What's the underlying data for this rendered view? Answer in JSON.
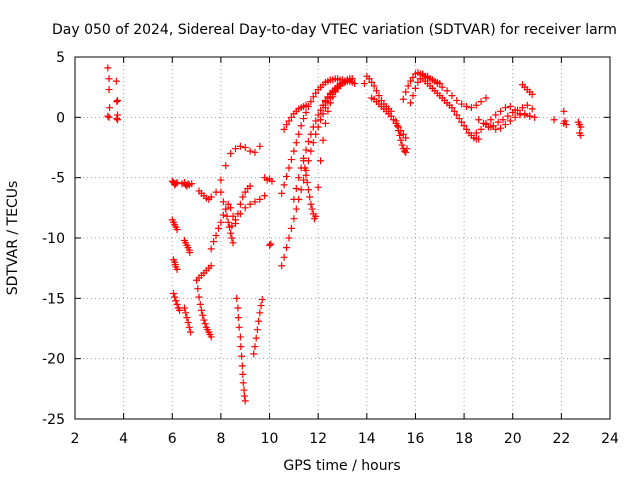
{
  "chart_data": {
    "type": "scatter",
    "title": "Day 050 of 2024, Sidereal Day-to-day VTEC variation (SDTVAR) for receiver larm",
    "xlabel": "GPS time / hours",
    "ylabel": "SDTVAR / TECUs",
    "xlim": [
      2,
      24
    ],
    "ylim": [
      -25,
      5
    ],
    "xticks": [
      2,
      4,
      6,
      8,
      10,
      12,
      14,
      16,
      18,
      20,
      22,
      24
    ],
    "yticks": [
      -25,
      -20,
      -15,
      -10,
      -5,
      0,
      5
    ],
    "grid": true,
    "legend": "none",
    "marker": "+",
    "color": "#ff0000",
    "series": [
      {
        "x": [
          3.35,
          3.4,
          3.4,
          3.42,
          3.35,
          3.4,
          3.7,
          3.75,
          3.72,
          3.75,
          3.72,
          3.75
        ],
        "y": [
          4.1,
          3.2,
          2.3,
          0.8,
          0.1,
          0.0,
          3.0,
          1.4,
          1.3,
          0.2,
          -0.1,
          -0.2
        ]
      },
      {
        "x": [
          6.0,
          6.05,
          6.1,
          6.1,
          6.15,
          6.2,
          6.4,
          6.5,
          6.55,
          6.6,
          6.65,
          6.7,
          6.8
        ],
        "y": [
          -5.3,
          -5.4,
          -5.5,
          -5.6,
          -5.5,
          -5.4,
          -5.5,
          -5.4,
          -5.6,
          -5.7,
          -5.5,
          -5.6,
          -5.5
        ]
      },
      {
        "x": [
          6.0,
          6.05,
          6.1,
          6.15,
          6.2
        ],
        "y": [
          -8.5,
          -8.7,
          -8.9,
          -9.1,
          -9.3
        ]
      },
      {
        "x": [
          6.05,
          6.1,
          6.12,
          6.15,
          6.2
        ],
        "y": [
          -11.8,
          -12.0,
          -12.2,
          -12.4,
          -12.6
        ]
      },
      {
        "x": [
          6.5,
          6.55,
          6.6,
          6.65,
          6.7,
          6.72
        ],
        "y": [
          -10.2,
          -10.4,
          -10.6,
          -10.8,
          -11.0,
          -11.2
        ]
      },
      {
        "x": [
          6.05,
          6.1,
          6.15,
          6.2,
          6.25,
          6.3
        ],
        "y": [
          -14.6,
          -14.9,
          -15.2,
          -15.5,
          -15.8,
          -16.0
        ]
      },
      {
        "x": [
          6.5,
          6.55,
          6.6,
          6.65,
          6.7,
          6.75
        ],
        "y": [
          -15.8,
          -16.2,
          -16.6,
          -17.0,
          -17.4,
          -17.8
        ]
      },
      {
        "x": [
          7.0,
          7.05,
          7.1,
          7.15,
          7.2,
          7.25,
          7.3,
          7.35,
          7.4,
          7.45,
          7.5,
          7.55,
          7.6
        ],
        "y": [
          -13.5,
          -14.2,
          -14.9,
          -15.5,
          -16.0,
          -16.4,
          -16.8,
          -17.1,
          -17.4,
          -17.6,
          -17.8,
          -18.0,
          -18.2
        ]
      },
      {
        "x": [
          7.1,
          7.2,
          7.3,
          7.4,
          7.5,
          7.6
        ],
        "y": [
          -13.3,
          -13.1,
          -12.9,
          -12.7,
          -12.5,
          -12.3
        ]
      },
      {
        "x": [
          7.1,
          7.2,
          7.3,
          7.4,
          7.5,
          7.6,
          7.8,
          8.0,
          8.2,
          8.4,
          8.6,
          8.8,
          9.0,
          9.2,
          9.4,
          9.6
        ],
        "y": [
          -6.1,
          -6.3,
          -6.5,
          -6.7,
          -6.8,
          -6.6,
          -6.2,
          -5.2,
          -4.0,
          -3.0,
          -2.6,
          -2.4,
          -2.5,
          -2.8,
          -2.9,
          -2.4
        ]
      },
      {
        "x": [
          7.6,
          7.7,
          7.8,
          7.9,
          8.0,
          8.1,
          8.2,
          8.3,
          8.4,
          8.5
        ],
        "y": [
          -10.9,
          -10.3,
          -9.8,
          -9.2,
          -8.7,
          -8.1,
          -7.6,
          -7.2,
          -7.5,
          -8.2
        ]
      },
      {
        "x": [
          8.0,
          8.1,
          8.2,
          8.25,
          8.3,
          8.35,
          8.4,
          8.45,
          8.5
        ],
        "y": [
          -6.2,
          -7.0,
          -7.6,
          -8.2,
          -8.7,
          -9.1,
          -9.6,
          -10.0,
          -10.4
        ]
      },
      {
        "x": [
          8.45,
          8.6,
          8.8,
          9.0,
          9.2,
          9.4,
          9.6,
          9.8
        ],
        "y": [
          -9.0,
          -8.5,
          -8.0,
          -7.5,
          -7.2,
          -7.0,
          -6.8,
          -6.5
        ]
      },
      {
        "x": [
          8.6,
          8.7,
          8.8,
          8.9,
          9.0,
          9.1,
          9.2
        ],
        "y": [
          -8.8,
          -8.0,
          -7.2,
          -6.6,
          -6.2,
          -5.9,
          -5.7
        ]
      },
      {
        "x": [
          8.65,
          8.7,
          8.72,
          8.75,
          8.8,
          8.82,
          8.85,
          8.88,
          8.9,
          8.92,
          8.95,
          8.97,
          9.0
        ],
        "y": [
          -15.0,
          -15.8,
          -16.6,
          -17.4,
          -18.2,
          -19.0,
          -19.8,
          -20.6,
          -21.3,
          -22.0,
          -22.6,
          -23.1,
          -23.5
        ]
      },
      {
        "x": [
          9.35,
          9.4,
          9.45,
          9.5,
          9.55,
          9.6,
          9.65,
          9.7
        ],
        "y": [
          -19.6,
          -19.0,
          -18.3,
          -17.6,
          -16.9,
          -16.2,
          -15.6,
          -15.1
        ]
      },
      {
        "x": [
          9.8,
          9.9,
          10.0,
          10.1,
          10.05,
          10.0
        ],
        "y": [
          -5.0,
          -5.2,
          -5.1,
          -5.3,
          -10.5,
          -10.6
        ]
      },
      {
        "x": [
          10.5,
          10.6,
          10.7,
          10.8,
          10.9,
          11.0,
          11.1,
          11.2,
          11.3,
          11.4,
          11.5,
          11.6,
          11.7,
          11.8,
          11.9,
          12.0,
          12.1,
          12.2,
          12.3,
          12.4,
          12.5,
          12.6,
          12.7,
          12.8,
          12.9,
          13.0,
          13.1,
          13.2,
          13.3
        ],
        "y": [
          -12.3,
          -11.6,
          -10.8,
          -10.0,
          -9.2,
          -8.4,
          -7.6,
          -6.8,
          -6.0,
          -5.2,
          -4.4,
          -3.6,
          -2.8,
          -2.1,
          -1.4,
          -0.8,
          -0.2,
          0.3,
          0.8,
          1.2,
          1.6,
          1.9,
          2.2,
          2.4,
          2.6,
          2.8,
          2.9,
          3.0,
          3.0
        ]
      },
      {
        "x": [
          10.5,
          10.6,
          10.7,
          10.8,
          10.9,
          11.0,
          11.1,
          11.2,
          11.3,
          11.4,
          11.5,
          11.6,
          11.7,
          11.8,
          11.9,
          12.0,
          12.1,
          12.2,
          12.3,
          12.4,
          12.5,
          12.6,
          12.7,
          12.8,
          12.9,
          13.0,
          13.1
        ],
        "y": [
          -6.3,
          -5.6,
          -4.9,
          -4.2,
          -3.5,
          -2.8,
          -2.1,
          -1.4,
          -0.7,
          -0.1,
          0.4,
          0.9,
          1.3,
          1.7,
          2.0,
          2.3,
          2.5,
          2.7,
          2.9,
          3.0,
          3.1,
          3.1,
          3.2,
          3.2,
          3.1,
          3.1,
          3.0
        ]
      },
      {
        "x": [
          10.6,
          10.7,
          10.8,
          10.9,
          11.0,
          11.1,
          11.2,
          11.3,
          11.4,
          11.5
        ],
        "y": [
          -1.0,
          -0.6,
          -0.3,
          0.0,
          0.3,
          0.5,
          0.7,
          0.8,
          0.9,
          1.0
        ]
      },
      {
        "x": [
          11.0,
          11.1,
          11.2,
          11.3,
          11.4,
          11.5,
          11.6,
          11.7,
          11.8,
          11.9,
          12.0,
          12.1,
          12.2,
          12.3,
          12.4,
          12.5,
          12.6,
          12.7,
          12.8,
          12.9,
          13.0,
          13.1,
          13.2,
          13.3,
          13.4
        ],
        "y": [
          -6.8,
          -5.9,
          -5.0,
          -4.2,
          -3.4,
          -2.7,
          -2.0,
          -1.4,
          -0.8,
          -0.3,
          0.2,
          0.6,
          1.0,
          1.4,
          1.7,
          2.0,
          2.2,
          2.4,
          2.6,
          2.8,
          2.9,
          3.0,
          3.1,
          3.2,
          3.2
        ]
      },
      {
        "x": [
          11.4,
          11.45,
          11.5,
          11.55,
          11.6,
          11.65,
          11.7,
          11.75,
          11.8,
          11.85,
          11.9,
          12.0,
          12.1,
          12.2,
          12.3,
          12.4,
          12.5,
          12.6,
          12.7,
          12.8,
          12.9,
          13.0,
          13.1,
          13.2,
          13.3,
          13.4,
          13.5
        ],
        "y": [
          -3.6,
          -4.2,
          -4.8,
          -5.4,
          -6.0,
          -6.6,
          -7.2,
          -7.6,
          -8.0,
          -8.4,
          -8.2,
          -5.8,
          -3.6,
          -1.9,
          -0.5,
          0.5,
          1.2,
          1.7,
          2.1,
          2.4,
          2.6,
          2.8,
          2.9,
          3.0,
          3.0,
          2.9,
          2.8
        ]
      },
      {
        "x": [
          12.2,
          12.3,
          12.4,
          12.5,
          12.6,
          12.7,
          12.8,
          12.9,
          13.0,
          13.1,
          13.2,
          13.3,
          13.4
        ],
        "y": [
          1.0,
          1.3,
          1.6,
          1.9,
          2.1,
          2.3,
          2.5,
          2.7,
          2.9,
          3.0,
          3.1,
          3.1,
          3.2
        ]
      },
      {
        "x": [
          13.9,
          14.0,
          14.1,
          14.2,
          14.3,
          14.4,
          14.5,
          14.6,
          14.7,
          14.8,
          14.9,
          15.0
        ],
        "y": [
          2.8,
          3.4,
          3.2,
          2.9,
          2.6,
          2.2,
          1.8,
          1.4,
          1.1,
          0.9,
          0.7,
          0.5
        ]
      },
      {
        "x": [
          14.2,
          14.3,
          14.4,
          14.5,
          14.6,
          14.7,
          14.8,
          14.9,
          15.0,
          15.1,
          15.2,
          15.3,
          15.4,
          15.5,
          15.6
        ],
        "y": [
          1.6,
          1.5,
          1.3,
          1.1,
          0.9,
          0.7,
          0.5,
          0.3,
          0.1,
          -0.2,
          -0.5,
          -0.8,
          -1.1,
          -1.4,
          -1.7
        ]
      },
      {
        "x": [
          15.2,
          15.25,
          15.3,
          15.35,
          15.4,
          15.45,
          15.5,
          15.55,
          15.6,
          15.65
        ],
        "y": [
          -0.3,
          -0.7,
          -1.1,
          -1.5,
          -1.9,
          -2.3,
          -2.6,
          -2.8,
          -2.9,
          -2.6
        ]
      },
      {
        "x": [
          15.5,
          15.6,
          15.7,
          15.8,
          15.9,
          16.0,
          16.1,
          16.2,
          16.3,
          16.4,
          16.5,
          16.6,
          16.7,
          16.8,
          16.9,
          17.0
        ],
        "y": [
          1.5,
          2.1,
          2.6,
          3.0,
          3.3,
          3.6,
          3.7,
          3.6,
          3.5,
          3.4,
          3.3,
          3.2,
          3.1,
          3.0,
          2.9,
          2.8
        ]
      },
      {
        "x": [
          15.8,
          15.9,
          16.0,
          16.1,
          16.2,
          16.3,
          16.4,
          16.5,
          16.6,
          16.7,
          16.8,
          16.9,
          17.0,
          17.1,
          17.2,
          17.3,
          17.4,
          17.5,
          17.6,
          17.7,
          17.8,
          17.9,
          18.0,
          18.1,
          18.2,
          18.3,
          18.4,
          18.5,
          18.6
        ],
        "y": [
          1.2,
          1.8,
          2.4,
          2.9,
          3.2,
          3.2,
          3.0,
          2.8,
          2.6,
          2.4,
          2.2,
          2.0,
          1.8,
          1.6,
          1.4,
          1.2,
          1.0,
          0.8,
          0.5,
          0.2,
          -0.1,
          -0.4,
          -0.7,
          -1.0,
          -1.3,
          -1.5,
          -1.7,
          -1.8,
          -1.8
        ]
      },
      {
        "x": [
          16.3,
          16.5,
          16.7,
          16.9,
          17.1,
          17.3,
          17.5,
          17.7,
          17.9,
          18.1,
          18.3,
          18.5,
          18.7,
          18.9
        ],
        "y": [
          3.6,
          3.4,
          3.1,
          2.8,
          2.5,
          2.2,
          1.8,
          1.4,
          1.1,
          0.9,
          0.8,
          1.0,
          1.3,
          1.6
        ]
      },
      {
        "x": [
          18.5,
          18.7,
          18.9,
          19.1,
          19.3,
          19.5,
          19.7,
          19.9,
          20.1,
          20.3,
          20.5,
          20.7,
          20.9
        ],
        "y": [
          -1.3,
          -1.0,
          -0.6,
          -0.2,
          0.2,
          0.5,
          0.8,
          0.9,
          0.6,
          0.3,
          0.2,
          0.1,
          0.0
        ]
      },
      {
        "x": [
          18.6,
          18.8,
          19.0,
          19.2,
          19.4,
          19.6,
          19.8,
          20.0,
          20.2,
          20.4,
          20.6,
          20.8
        ],
        "y": [
          -0.2,
          -0.5,
          -0.8,
          -0.7,
          -0.4,
          -0.2,
          0.1,
          0.4,
          0.6,
          0.8,
          1.0,
          0.7
        ]
      },
      {
        "x": [
          18.9,
          19.1,
          19.3,
          19.5,
          19.7,
          19.9,
          20.1,
          20.3,
          20.5,
          20.7
        ],
        "y": [
          -0.5,
          -0.8,
          -1.0,
          -0.9,
          -0.6,
          -0.3,
          0.0,
          0.2,
          0.3,
          0.1
        ]
      },
      {
        "x": [
          20.4,
          20.5,
          20.6,
          20.7,
          20.8
        ],
        "y": [
          2.7,
          2.5,
          2.3,
          2.1,
          1.9
        ]
      },
      {
        "x": [
          21.7,
          22.1,
          22.15,
          22.1,
          22.2
        ],
        "y": [
          -0.2,
          0.5,
          -0.3,
          -0.5,
          -0.6
        ]
      },
      {
        "x": [
          22.7,
          22.75,
          22.8,
          22.75,
          22.8
        ],
        "y": [
          -0.4,
          -0.6,
          -0.8,
          -1.3,
          -1.5
        ]
      }
    ]
  }
}
